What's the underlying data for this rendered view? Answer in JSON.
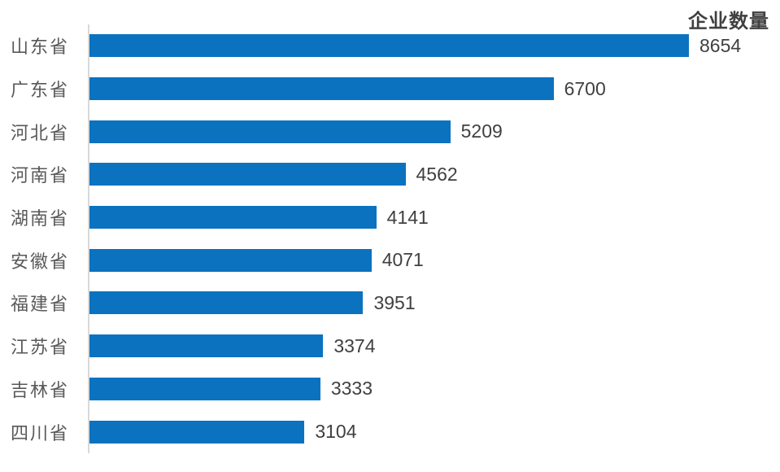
{
  "chart": {
    "colors": {
      "bar": "#0b72c0",
      "value_text": "#404040",
      "label_text": "#595959",
      "title_text": "#404040",
      "axis_line": "#d9d9d9"
    }
  },
  "chart_data": {
    "type": "bar",
    "orientation": "horizontal",
    "title": "企业数量",
    "categories": [
      "山东省",
      "广东省",
      "河北省",
      "河南省",
      "湖南省",
      "安徽省",
      "福建省",
      "江苏省",
      "吉林省",
      "四川省"
    ],
    "values": [
      8654,
      6700,
      5209,
      4562,
      4141,
      4071,
      3951,
      3374,
      3333,
      3104
    ],
    "xlabel": "",
    "ylabel": "",
    "xlim": [
      0,
      8654
    ],
    "grid": false,
    "legend": "none",
    "data_labels": true,
    "sort_order": "descending"
  }
}
